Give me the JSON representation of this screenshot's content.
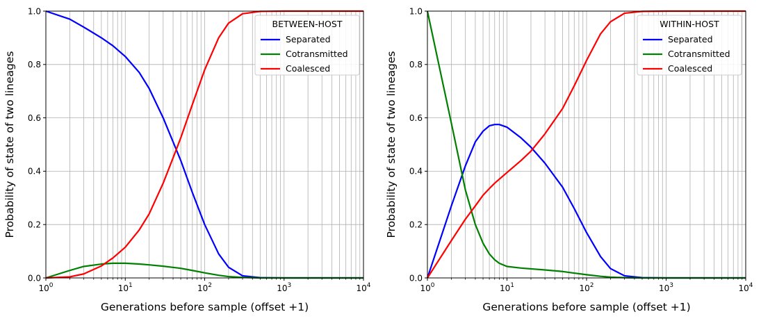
{
  "chart_data": [
    {
      "type": "line",
      "x_scale": "log",
      "xlim": [
        1,
        10000
      ],
      "ylim": [
        0,
        1
      ],
      "xlabel": "Generations before sample (offset +1)",
      "ylabel": "Probability of state of two lineages",
      "x_ticks": [
        "10^0",
        "10^1",
        "10^2",
        "10^3",
        "10^4"
      ],
      "y_ticks": [
        "0.0",
        "0.2",
        "0.4",
        "0.6",
        "0.8",
        "1.0"
      ],
      "grid": true,
      "legend_title": "BETWEEN-HOST",
      "legend_position": "top-right",
      "series": [
        {
          "name": "Separated",
          "color": "#0000ff",
          "points": [
            [
              1,
              1.0
            ],
            [
              2,
              0.97
            ],
            [
              3,
              0.94
            ],
            [
              5,
              0.9
            ],
            [
              7,
              0.87
            ],
            [
              10,
              0.83
            ],
            [
              15,
              0.77
            ],
            [
              20,
              0.71
            ],
            [
              30,
              0.6
            ],
            [
              40,
              0.51
            ],
            [
              50,
              0.44
            ],
            [
              70,
              0.32
            ],
            [
              100,
              0.2
            ],
            [
              150,
              0.09
            ],
            [
              200,
              0.04
            ],
            [
              300,
              0.008
            ],
            [
              500,
              0.001
            ],
            [
              1000,
              0
            ],
            [
              10000,
              0
            ]
          ]
        },
        {
          "name": "Cotransmitted",
          "color": "#008000",
          "points": [
            [
              1,
              0.0
            ],
            [
              2,
              0.028
            ],
            [
              3,
              0.043
            ],
            [
              5,
              0.052
            ],
            [
              7,
              0.055
            ],
            [
              10,
              0.055
            ],
            [
              15,
              0.052
            ],
            [
              20,
              0.049
            ],
            [
              30,
              0.044
            ],
            [
              50,
              0.036
            ],
            [
              70,
              0.028
            ],
            [
              100,
              0.019
            ],
            [
              150,
              0.01
            ],
            [
              200,
              0.005
            ],
            [
              300,
              0.002
            ],
            [
              500,
              0
            ],
            [
              1000,
              0
            ],
            [
              10000,
              0
            ]
          ]
        },
        {
          "name": "Coalesced",
          "color": "#ff0000",
          "points": [
            [
              1,
              0.0
            ],
            [
              2,
              0.004
            ],
            [
              3,
              0.015
            ],
            [
              5,
              0.045
            ],
            [
              7,
              0.075
            ],
            [
              10,
              0.115
            ],
            [
              15,
              0.18
            ],
            [
              20,
              0.24
            ],
            [
              30,
              0.355
            ],
            [
              40,
              0.45
            ],
            [
              50,
              0.525
            ],
            [
              70,
              0.65
            ],
            [
              100,
              0.78
            ],
            [
              150,
              0.9
            ],
            [
              200,
              0.955
            ],
            [
              300,
              0.99
            ],
            [
              500,
              0.999
            ],
            [
              1000,
              1.0
            ],
            [
              10000,
              1.0
            ]
          ]
        }
      ]
    },
    {
      "type": "line",
      "x_scale": "log",
      "xlim": [
        1,
        10000
      ],
      "ylim": [
        0,
        1
      ],
      "xlabel": "Generations before sample (offset +1)",
      "ylabel": "Probability of state of two lineages",
      "x_ticks": [
        "10^0",
        "10^1",
        "10^2",
        "10^3",
        "10^4"
      ],
      "y_ticks": [
        "0.0",
        "0.2",
        "0.4",
        "0.6",
        "0.8",
        "1.0"
      ],
      "grid": true,
      "legend_title": "WITHIN-HOST",
      "legend_position": "top-right",
      "series": [
        {
          "name": "Separated",
          "color": "#0000ff",
          "points": [
            [
              1,
              0.0
            ],
            [
              2,
              0.27
            ],
            [
              3,
              0.42
            ],
            [
              4,
              0.51
            ],
            [
              5,
              0.55
            ],
            [
              6,
              0.57
            ],
            [
              7,
              0.575
            ],
            [
              8,
              0.575
            ],
            [
              10,
              0.565
            ],
            [
              15,
              0.525
            ],
            [
              20,
              0.49
            ],
            [
              30,
              0.43
            ],
            [
              50,
              0.34
            ],
            [
              70,
              0.26
            ],
            [
              100,
              0.17
            ],
            [
              150,
              0.08
            ],
            [
              200,
              0.035
            ],
            [
              300,
              0.008
            ],
            [
              500,
              0.001
            ],
            [
              1000,
              0
            ],
            [
              10000,
              0
            ]
          ]
        },
        {
          "name": "Cotransmitted",
          "color": "#008000",
          "points": [
            [
              1,
              1.0
            ],
            [
              2,
              0.58
            ],
            [
              3,
              0.33
            ],
            [
              4,
              0.2
            ],
            [
              5,
              0.13
            ],
            [
              6,
              0.09
            ],
            [
              7,
              0.068
            ],
            [
              8,
              0.055
            ],
            [
              10,
              0.043
            ],
            [
              15,
              0.037
            ],
            [
              20,
              0.034
            ],
            [
              30,
              0.03
            ],
            [
              50,
              0.024
            ],
            [
              70,
              0.018
            ],
            [
              100,
              0.012
            ],
            [
              150,
              0.006
            ],
            [
              200,
              0.003
            ],
            [
              300,
              0.001
            ],
            [
              500,
              0
            ],
            [
              1000,
              0
            ],
            [
              10000,
              0
            ]
          ]
        },
        {
          "name": "Coalesced",
          "color": "#ff0000",
          "points": [
            [
              1,
              0.0
            ],
            [
              2,
              0.14
            ],
            [
              3,
              0.22
            ],
            [
              4,
              0.27
            ],
            [
              5,
              0.31
            ],
            [
              6,
              0.335
            ],
            [
              7,
              0.355
            ],
            [
              8,
              0.37
            ],
            [
              10,
              0.395
            ],
            [
              15,
              0.44
            ],
            [
              20,
              0.475
            ],
            [
              30,
              0.54
            ],
            [
              50,
              0.635
            ],
            [
              70,
              0.72
            ],
            [
              100,
              0.815
            ],
            [
              150,
              0.915
            ],
            [
              200,
              0.96
            ],
            [
              300,
              0.992
            ],
            [
              500,
              0.999
            ],
            [
              1000,
              1.0
            ],
            [
              10000,
              1.0
            ]
          ]
        }
      ]
    }
  ]
}
